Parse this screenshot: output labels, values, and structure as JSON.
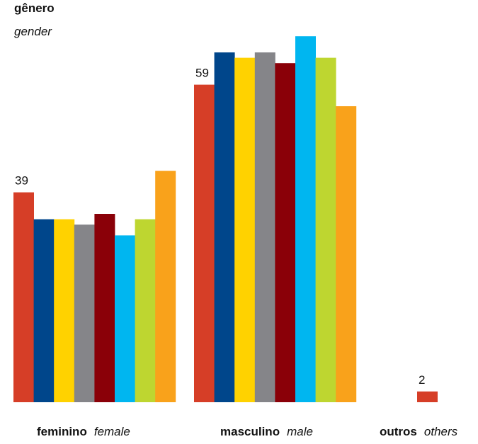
{
  "title": "gênero",
  "subtitle": "gender",
  "chart_data": {
    "type": "bar",
    "title": "gênero",
    "subtitle": "gender",
    "categories": [
      {
        "label": "feminino",
        "label_en": "female"
      },
      {
        "label": "masculino",
        "label_en": "male"
      },
      {
        "label": "outros",
        "label_en": "others"
      }
    ],
    "series_colors": [
      "#d63e27",
      "#00468b",
      "#ffd200",
      "#858589",
      "#8a0008",
      "#00b6f0",
      "#bed630",
      "#f9a21b"
    ],
    "groups": [
      {
        "values": [
          39,
          34,
          34,
          33,
          35,
          31,
          34,
          43
        ],
        "data_label": "39"
      },
      {
        "values": [
          59,
          65,
          64,
          65,
          63,
          68,
          64,
          55
        ],
        "data_label": "59"
      },
      {
        "values": [
          2
        ],
        "data_label": "2"
      }
    ],
    "ylim": [
      0,
      70
    ]
  }
}
